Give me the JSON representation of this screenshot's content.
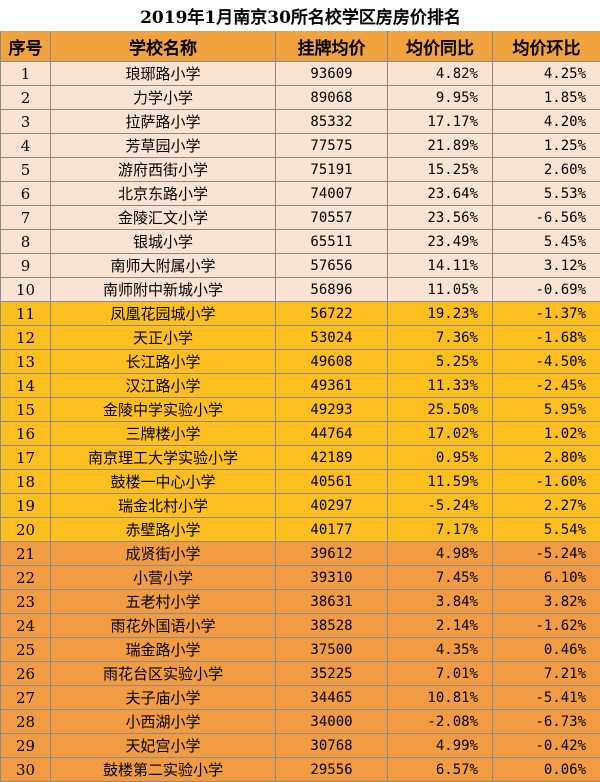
{
  "table": {
    "title": "2019年1月南京30所名校学区房房价排名",
    "headers": [
      "序号",
      "学校名称",
      "挂牌均价",
      "均价同比",
      "均价环比"
    ],
    "rows": [
      [
        1,
        "琅琊路小学",
        93609,
        "4.82%",
        "4.25%"
      ],
      [
        2,
        "力学小学",
        89068,
        "9.95%",
        "1.85%"
      ],
      [
        3,
        "拉萨路小学",
        85332,
        "17.17%",
        "4.20%"
      ],
      [
        4,
        "芳草园小学",
        77575,
        "21.89%",
        "1.25%"
      ],
      [
        5,
        "游府西街小学",
        75191,
        "15.25%",
        "2.60%"
      ],
      [
        6,
        "北京东路小学",
        74007,
        "23.64%",
        "5.53%"
      ],
      [
        7,
        "金陵汇文小学",
        70557,
        "23.56%",
        "-6.56%"
      ],
      [
        8,
        "银城小学",
        65511,
        "23.49%",
        "5.45%"
      ],
      [
        9,
        "南师大附属小学",
        57656,
        "14.11%",
        "3.12%"
      ],
      [
        10,
        "南师附中新城小学",
        56896,
        "11.05%",
        "-0.69%"
      ],
      [
        11,
        "凤凰花园城小学",
        56722,
        "19.23%",
        "-1.37%"
      ],
      [
        12,
        "天正小学",
        53024,
        "7.36%",
        "-1.68%"
      ],
      [
        13,
        "长江路小学",
        49608,
        "5.25%",
        "-4.50%"
      ],
      [
        14,
        "汉江路小学",
        49361,
        "11.33%",
        "-2.45%"
      ],
      [
        15,
        "金陵中学实验小学",
        49293,
        "25.50%",
        "5.95%"
      ],
      [
        16,
        "三牌楼小学",
        44764,
        "17.02%",
        "1.02%"
      ],
      [
        17,
        "南京理工大学实验小学",
        42189,
        "0.95%",
        "2.80%"
      ],
      [
        18,
        "鼓楼一中心小学",
        40561,
        "11.59%",
        "-1.60%"
      ],
      [
        19,
        "瑞金北村小学",
        40297,
        "-5.24%",
        "2.27%"
      ],
      [
        20,
        "赤壁路小学",
        40177,
        "7.17%",
        "5.54%"
      ],
      [
        21,
        "成贤街小学",
        39612,
        "4.98%",
        "-5.24%"
      ],
      [
        22,
        "小营小学",
        39310,
        "7.45%",
        "6.10%"
      ],
      [
        23,
        "五老村小学",
        38631,
        "3.84%",
        "3.82%"
      ],
      [
        24,
        "雨花外国语小学",
        38528,
        "2.14%",
        "-1.62%"
      ],
      [
        25,
        "瑞金路小学",
        37500,
        "4.35%",
        "0.46%"
      ],
      [
        26,
        "雨花台区实验小学",
        35225,
        "7.01%",
        "7.21%"
      ],
      [
        27,
        "夫子庙小学",
        34465,
        "10.81%",
        "-5.41%"
      ],
      [
        28,
        "小西湖小学",
        34000,
        "-2.08%",
        "-6.73%"
      ],
      [
        29,
        "天妃宫小学",
        30768,
        "4.99%",
        "-0.42%"
      ],
      [
        30,
        "鼓楼第二实验小学",
        29556,
        "6.57%",
        "0.06%"
      ]
    ]
  }
}
